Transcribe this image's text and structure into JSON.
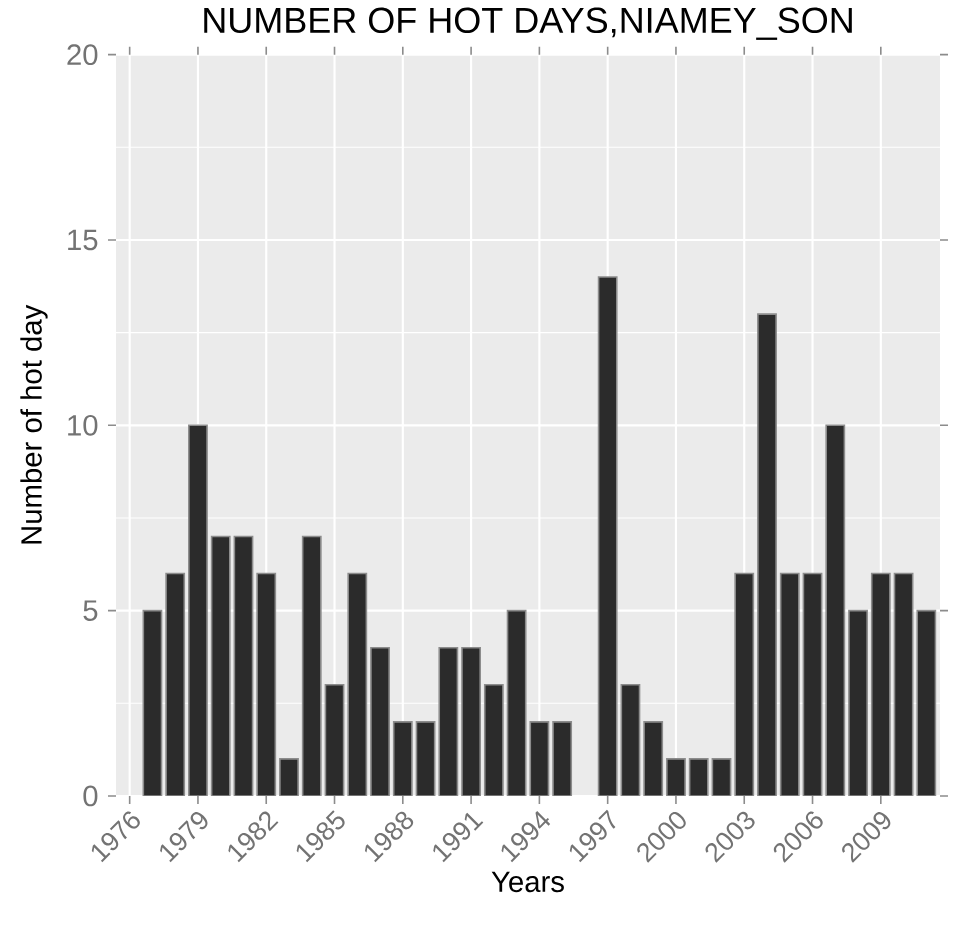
{
  "chart_data": {
    "type": "bar",
    "title": "NUMBER OF HOT DAYS,NIAMEY_SON",
    "xlabel": "Years",
    "ylabel": "Number of hot day",
    "x": [
      1977,
      1978,
      1979,
      1980,
      1981,
      1982,
      1983,
      1984,
      1985,
      1986,
      1987,
      1988,
      1989,
      1990,
      1991,
      1992,
      1993,
      1994,
      1995,
      1996,
      1997,
      1998,
      1999,
      2000,
      2001,
      2002,
      2003,
      2004,
      2005,
      2006,
      2007,
      2008,
      2009,
      2010,
      2011
    ],
    "values": [
      5,
      6,
      10,
      7,
      7,
      6,
      1,
      7,
      3,
      6,
      4,
      2,
      2,
      4,
      4,
      3,
      5,
      2,
      2,
      null,
      14,
      3,
      2,
      1,
      1,
      1,
      6,
      13,
      6,
      6,
      10,
      5,
      6,
      6,
      5
    ],
    "color": "#2b2b2b",
    "xlim": [
      1975.4,
      2011.6
    ],
    "ylim": [
      0,
      20
    ],
    "xticks": [
      1976,
      1979,
      1982,
      1985,
      1988,
      1991,
      1994,
      1997,
      2000,
      2003,
      2006,
      2009
    ],
    "yticks": [
      0,
      5,
      10,
      15,
      20
    ],
    "grid": true
  }
}
